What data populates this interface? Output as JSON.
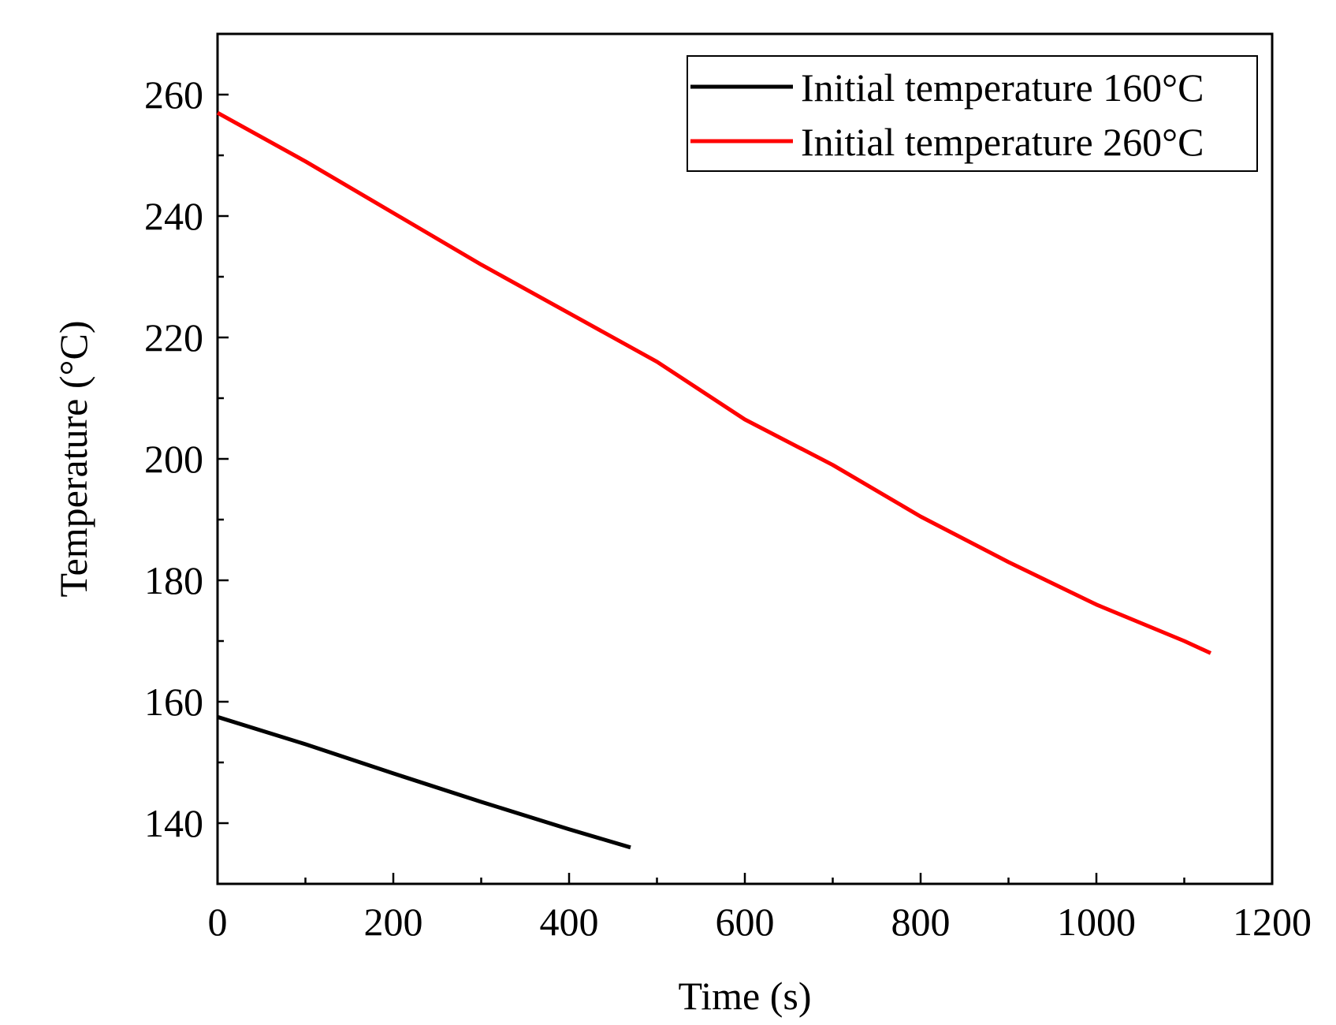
{
  "chart_data": {
    "type": "line",
    "title": "",
    "xlabel": "Time (s)",
    "ylabel": "Temperature (°C)",
    "xlim": [
      0,
      1200
    ],
    "ylim": [
      130,
      270
    ],
    "xticks": [
      0,
      200,
      400,
      600,
      800,
      1000,
      1200
    ],
    "yticks": [
      140,
      160,
      180,
      200,
      220,
      240,
      260
    ],
    "grid": false,
    "legend_position": "top-right",
    "series": [
      {
        "name": "Initial temperature 160°C",
        "color": "#000000",
        "x": [
          0,
          100,
          200,
          300,
          400,
          470
        ],
        "y": [
          157.5,
          153.0,
          148.2,
          143.5,
          139.0,
          136.0
        ]
      },
      {
        "name": "Initial temperature 260°C",
        "color": "#ff0000",
        "x": [
          0,
          100,
          200,
          300,
          400,
          500,
          600,
          700,
          800,
          900,
          1000,
          1100,
          1130
        ],
        "y": [
          257,
          249,
          240.5,
          232,
          224,
          216,
          206.5,
          199,
          190.5,
          183,
          176,
          170,
          168
        ]
      }
    ]
  }
}
